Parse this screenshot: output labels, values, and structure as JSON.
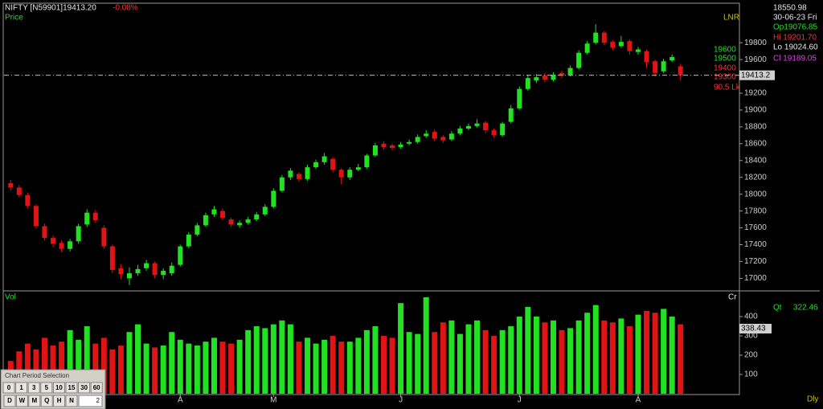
{
  "header": {
    "symbol": "NIFTY [N59901]19413.20",
    "change": "-0.08%",
    "price_label": "Price",
    "unit_label": "LNR"
  },
  "info_panel": {
    "crosshair": "18550.98",
    "date": "30-06-23 Fri",
    "open": "Op19076.85",
    "high": "Hi 19201.70",
    "low": "Lo 19024.60",
    "close": "Cl 19189.05"
  },
  "levels": {
    "l1": "19600",
    "l2": "19500",
    "l3": "19400",
    "l4": "19300",
    "l5": "90.5 Lk",
    "last": "19413.2"
  },
  "volume_panel": {
    "label": "Vol",
    "unit": "Cr",
    "qt_label": "Qt",
    "qt_value": "322.46",
    "cursor_value": "338.43",
    "period": "Dly"
  },
  "period_selector": {
    "title": "Chart Period Selection",
    "row1": [
      "0",
      "1",
      "3",
      "5",
      "10",
      "15",
      "30",
      "60"
    ],
    "row2": [
      "D",
      "W",
      "M",
      "Q",
      "H",
      "N"
    ],
    "input": "2"
  },
  "chart_data": [
    {
      "type": "candlestick",
      "up_color": "#22e022",
      "down_color": "#e01414",
      "ylim": [
        16870,
        20260
      ],
      "yticks": [
        17000,
        17200,
        17400,
        17600,
        17800,
        18000,
        18200,
        18400,
        18600,
        18800,
        19000,
        19200,
        19400,
        19600,
        19800
      ],
      "open": [
        18130,
        18080,
        17990,
        17860,
        17620,
        17480,
        17420,
        17350,
        17440,
        17640,
        17780,
        17600,
        17380,
        17120,
        17000,
        17060,
        17120,
        17180,
        17040,
        17060,
        17160,
        17380,
        17520,
        17630,
        17760,
        17800,
        17700,
        17630,
        17660,
        17700,
        17760,
        17850,
        18040,
        18200,
        18240,
        18180,
        18320,
        18380,
        18420,
        18290,
        18200,
        18290,
        18320,
        18460,
        18600,
        18580,
        18560,
        18600,
        18620,
        18690,
        18740,
        18680,
        18650,
        18720,
        18780,
        18810,
        18850,
        18760,
        18700,
        18860,
        19020,
        19250,
        19350,
        19410,
        19360,
        19440,
        19420,
        19500,
        19680,
        19800,
        19920,
        19810,
        19760,
        19820,
        19690,
        19700,
        19580,
        19460,
        19590,
        19520
      ],
      "high": [
        18170,
        18110,
        18020,
        17880,
        17650,
        17510,
        17450,
        17470,
        17650,
        17820,
        17810,
        17630,
        17400,
        17170,
        17130,
        17160,
        17220,
        17200,
        17120,
        17190,
        17400,
        17550,
        17660,
        17780,
        17860,
        17830,
        17720,
        17690,
        17730,
        17790,
        17880,
        18070,
        18230,
        18310,
        18260,
        18350,
        18410,
        18490,
        18440,
        18310,
        18320,
        18360,
        18480,
        18610,
        18630,
        18600,
        18620,
        18650,
        18710,
        18760,
        18770,
        18700,
        18750,
        18810,
        18840,
        18890,
        18870,
        18780,
        18860,
        19060,
        19280,
        19420,
        19430,
        19440,
        19450,
        19470,
        19530,
        19710,
        19820,
        20020,
        19940,
        19830,
        19880,
        19840,
        19750,
        19720,
        19600,
        19610,
        19660,
        19550
      ],
      "low": [
        18040,
        17960,
        17830,
        17590,
        17450,
        17370,
        17310,
        17320,
        17410,
        17610,
        17660,
        17350,
        17060,
        16990,
        16920,
        17030,
        17090,
        17000,
        16990,
        17030,
        17140,
        17360,
        17500,
        17610,
        17730,
        17690,
        17610,
        17600,
        17640,
        17680,
        17740,
        17830,
        18020,
        18170,
        18150,
        18160,
        18300,
        18350,
        18260,
        18120,
        18170,
        18270,
        18300,
        18440,
        18530,
        18520,
        18540,
        18580,
        18600,
        18670,
        18630,
        18610,
        18630,
        18700,
        18760,
        18790,
        18730,
        18670,
        18680,
        18840,
        19000,
        19230,
        19320,
        19330,
        19340,
        19380,
        19400,
        19480,
        19660,
        19780,
        19770,
        19710,
        19740,
        19660,
        19660,
        19500,
        19400,
        19440,
        19570,
        19350
      ],
      "close": [
        18080,
        17990,
        17860,
        17620,
        17480,
        17410,
        17350,
        17440,
        17620,
        17780,
        17690,
        17380,
        17100,
        17050,
        17060,
        17110,
        17180,
        17040,
        17090,
        17150,
        17380,
        17520,
        17630,
        17750,
        17820,
        17720,
        17640,
        17660,
        17700,
        17760,
        17850,
        18040,
        18200,
        18280,
        18180,
        18320,
        18380,
        18450,
        18290,
        18200,
        18290,
        18320,
        18460,
        18580,
        18560,
        18550,
        18590,
        18620,
        18680,
        18720,
        18660,
        18640,
        18720,
        18780,
        18810,
        18840,
        18760,
        18700,
        18840,
        19020,
        19250,
        19380,
        19390,
        19360,
        19420,
        19410,
        19500,
        19680,
        19790,
        19920,
        19800,
        19740,
        19810,
        19700,
        19720,
        19570,
        19440,
        19580,
        19630,
        19413.2
      ]
    },
    {
      "type": "bar",
      "categories": [
        null,
        null,
        null,
        null,
        null,
        null,
        null,
        null,
        null,
        null,
        null,
        null,
        null,
        null,
        null,
        null,
        null,
        null,
        null,
        null,
        "A",
        null,
        null,
        null,
        null,
        null,
        null,
        null,
        null,
        null,
        null,
        "M",
        null,
        null,
        null,
        null,
        null,
        null,
        null,
        null,
        null,
        null,
        null,
        null,
        null,
        null,
        "J",
        null,
        null,
        null,
        null,
        null,
        null,
        null,
        null,
        null,
        null,
        null,
        null,
        null,
        "J",
        null,
        null,
        null,
        null,
        null,
        null,
        null,
        null,
        null,
        null,
        null,
        null,
        null,
        "A",
        null,
        null,
        null,
        null,
        null
      ],
      "ylim": [
        0,
        525
      ],
      "yticks": [
        100,
        200,
        300,
        400
      ],
      "values": [
        170,
        220,
        260,
        230,
        290,
        250,
        270,
        330,
        280,
        350,
        260,
        290,
        230,
        250,
        320,
        360,
        260,
        240,
        250,
        320,
        280,
        260,
        250,
        270,
        290,
        270,
        260,
        280,
        330,
        350,
        340,
        360,
        380,
        360,
        270,
        290,
        260,
        280,
        300,
        270,
        270,
        290,
        330,
        350,
        300,
        290,
        470,
        320,
        310,
        500,
        320,
        370,
        380,
        310,
        360,
        380,
        330,
        300,
        330,
        350,
        400,
        450,
        400,
        370,
        380,
        330,
        340,
        380,
        420,
        460,
        380,
        370,
        390,
        350,
        410,
        430,
        420,
        440,
        400,
        360
      ]
    }
  ]
}
